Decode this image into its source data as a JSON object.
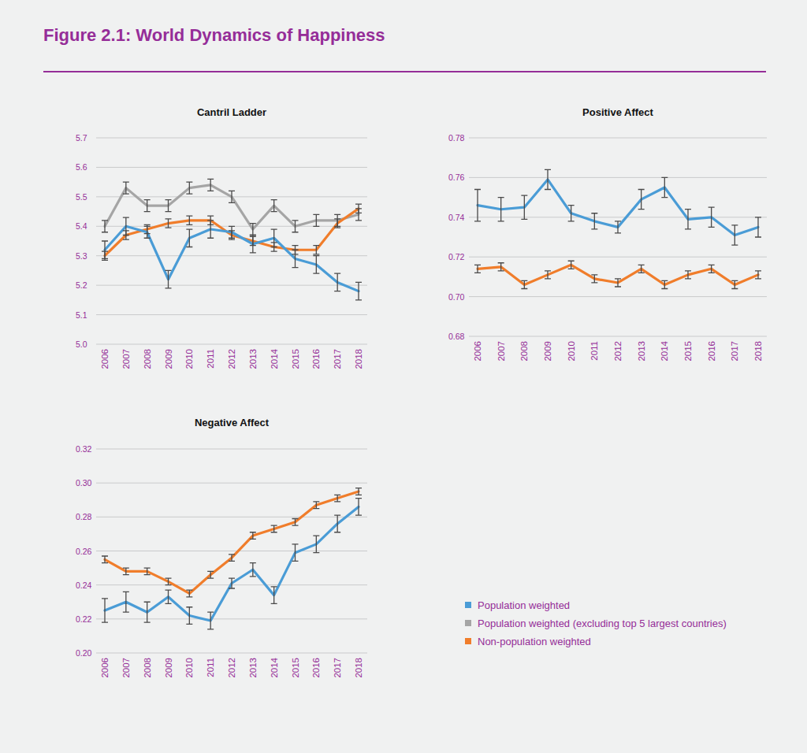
{
  "title": "Figure 2.1: World Dynamics of Happiness",
  "chart_data": [
    {
      "type": "line",
      "title": "Cantril Ladder",
      "categories": [
        "2006",
        "2007",
        "2008",
        "2009",
        "2010",
        "2011",
        "2012",
        "2013",
        "2014",
        "2015",
        "2016",
        "2017",
        "2018"
      ],
      "ylim": [
        5.0,
        5.7
      ],
      "yticks": [
        {
          "value": 5.0,
          "label": "5.0"
        },
        5.1,
        5.2,
        5.3,
        5.4,
        5.5,
        5.6,
        5.7
      ],
      "grid": true,
      "legend": "lower right",
      "series": [
        {
          "name": "Population weighted",
          "color": "#4a9cd6",
          "values": [
            5.32,
            5.4,
            5.38,
            5.22,
            5.36,
            5.39,
            5.38,
            5.34,
            5.36,
            5.29,
            5.27,
            5.21,
            5.18
          ],
          "errors": [
            0.03,
            0.03,
            0.02,
            0.03,
            0.03,
            0.03,
            0.02,
            0.03,
            0.03,
            0.03,
            0.03,
            0.03,
            0.03
          ]
        },
        {
          "name": "Population weighted (excluding top 5 largest countries)",
          "color": "#a5a5a5",
          "values": [
            5.4,
            5.53,
            5.47,
            5.47,
            5.53,
            5.54,
            5.5,
            5.39,
            5.47,
            5.4,
            5.42,
            5.42,
            5.44
          ],
          "errors": [
            0.02,
            0.02,
            0.02,
            0.02,
            0.02,
            0.02,
            0.02,
            0.02,
            0.02,
            0.02,
            0.02,
            0.02,
            0.02
          ]
        },
        {
          "name": "Non-population weighted",
          "color": "#f07d2b",
          "values": [
            5.3,
            5.37,
            5.39,
            5.41,
            5.42,
            5.42,
            5.37,
            5.35,
            5.33,
            5.32,
            5.32,
            5.41,
            5.46
          ],
          "errors": [
            0.015,
            0.015,
            0.015,
            0.015,
            0.015,
            0.015,
            0.015,
            0.015,
            0.015,
            0.015,
            0.015,
            0.015,
            0.015
          ]
        }
      ]
    },
    {
      "type": "line",
      "title": "Positive Affect",
      "categories": [
        "2006",
        "2007",
        "2008",
        "2009",
        "2010",
        "2011",
        "2012",
        "2013",
        "2014",
        "2015",
        "2016",
        "2017",
        "2018"
      ],
      "ylim": [
        0.68,
        0.78
      ],
      "yticks": [
        0.68,
        {
          "value": 0.7,
          "label": "0.70"
        },
        0.72,
        0.74,
        0.76,
        0.78
      ],
      "grid": true,
      "series": [
        {
          "name": "Population weighted",
          "color": "#4a9cd6",
          "values": [
            0.746,
            0.744,
            0.745,
            0.759,
            0.742,
            0.738,
            0.735,
            0.749,
            0.755,
            0.739,
            0.74,
            0.731,
            0.735
          ],
          "errors": [
            0.008,
            0.006,
            0.006,
            0.005,
            0.004,
            0.004,
            0.003,
            0.005,
            0.005,
            0.005,
            0.005,
            0.005,
            0.005
          ]
        },
        {
          "name": "Non-population weighted",
          "color": "#f07d2b",
          "values": [
            0.714,
            0.715,
            0.706,
            0.711,
            0.716,
            0.709,
            0.707,
            0.714,
            0.706,
            0.711,
            0.714,
            0.706,
            0.711
          ],
          "errors": [
            0.002,
            0.002,
            0.002,
            0.002,
            0.002,
            0.002,
            0.002,
            0.002,
            0.002,
            0.002,
            0.002,
            0.002,
            0.002
          ]
        }
      ]
    },
    {
      "type": "line",
      "title": "Negative Affect",
      "categories": [
        "2006",
        "2007",
        "2008",
        "2009",
        "2010",
        "2011",
        "2012",
        "2013",
        "2014",
        "2015",
        "2016",
        "2017",
        "2018"
      ],
      "ylim": [
        0.2,
        0.32
      ],
      "yticks": [
        {
          "value": 0.2,
          "label": "0.20"
        },
        0.22,
        0.24,
        0.26,
        0.28,
        {
          "value": 0.3,
          "label": "0.30"
        },
        0.32
      ],
      "grid": true,
      "series": [
        {
          "name": "Population weighted",
          "color": "#4a9cd6",
          "values": [
            0.225,
            0.23,
            0.224,
            0.233,
            0.222,
            0.219,
            0.241,
            0.249,
            0.234,
            0.259,
            0.264,
            0.276,
            0.286
          ],
          "errors": [
            0.007,
            0.006,
            0.006,
            0.004,
            0.005,
            0.005,
            0.003,
            0.004,
            0.005,
            0.005,
            0.005,
            0.005,
            0.005
          ]
        },
        {
          "name": "Non-population weighted",
          "color": "#f07d2b",
          "values": [
            0.255,
            0.248,
            0.248,
            0.242,
            0.235,
            0.246,
            0.256,
            0.269,
            0.273,
            0.277,
            0.287,
            0.291,
            0.295
          ],
          "errors": [
            0.002,
            0.002,
            0.002,
            0.002,
            0.002,
            0.002,
            0.002,
            0.002,
            0.002,
            0.002,
            0.002,
            0.002,
            0.002
          ]
        }
      ]
    }
  ]
}
